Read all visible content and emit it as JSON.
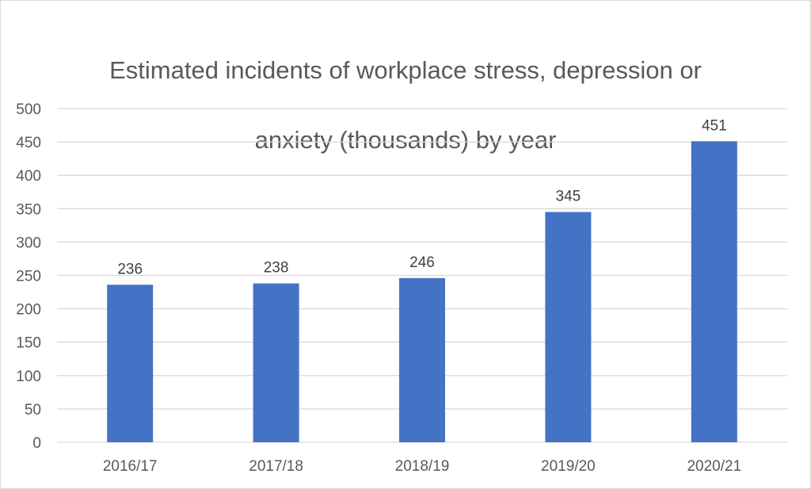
{
  "chart_data": {
    "type": "bar",
    "title": "Estimated incidents of workplace stress, depression or anxiety (thousands) by year",
    "title_lines": [
      "Estimated incidents of workplace stress, depression or",
      "anxiety (thousands) by year"
    ],
    "categories": [
      "2016/17",
      "2017/18",
      "2018/19",
      "2019/20",
      "2020/21"
    ],
    "values": [
      236,
      238,
      246,
      345,
      451
    ],
    "data_labels": [
      "236",
      "238",
      "246",
      "345",
      "451"
    ],
    "xlabel": "",
    "ylabel": "",
    "ylim": [
      0,
      500
    ],
    "yticks": [
      0,
      50,
      100,
      150,
      200,
      250,
      300,
      350,
      400,
      450,
      500
    ],
    "grid": true,
    "legend": "none",
    "bar_color": "#4472C4",
    "grid_color": "#d9d9d9"
  }
}
